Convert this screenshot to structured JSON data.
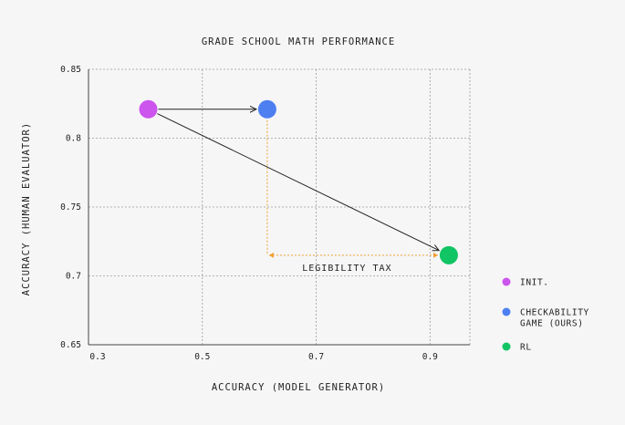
{
  "chart_data": {
    "type": "scatter",
    "title": "GRADE SCHOOL MATH PERFORMANCE",
    "xlabel": "ACCURACY (MODEL GENERATOR)",
    "ylabel": "ACCURACY (HUMAN EVALUATOR)",
    "xlim": [
      0.3,
      0.97
    ],
    "ylim": [
      0.65,
      0.85
    ],
    "xticks": [
      0.3,
      0.5,
      0.7,
      0.9
    ],
    "xtick_labels": [
      "0.3",
      "0.5",
      "0.7",
      "0.9"
    ],
    "yticks": [
      0.65,
      0.7,
      0.75,
      0.8,
      0.85
    ],
    "ytick_labels": [
      "0.65",
      "0.7",
      "0.75",
      "0.8",
      "0.85"
    ],
    "grid": true,
    "legend_position": "right",
    "series": [
      {
        "name": "INIT.",
        "legend_lines": [
          "INIT."
        ],
        "color": "#cc55ee",
        "x": 0.405,
        "y": 0.821
      },
      {
        "name": "CHECKABILITY GAME (OURS)",
        "legend_lines": [
          "CHECKABILITY",
          "GAME (OURS)"
        ],
        "color": "#4d7ff0",
        "x": 0.614,
        "y": 0.821
      },
      {
        "name": "RL",
        "legend_lines": [
          "RL"
        ],
        "color": "#11c464",
        "x": 0.933,
        "y": 0.715
      }
    ],
    "arrows": [
      {
        "from": "INIT.",
        "to": "CHECKABILITY GAME (OURS)",
        "color": "#222222"
      },
      {
        "from": "INIT.",
        "to": "RL",
        "color": "#222222"
      }
    ],
    "annotation": {
      "text": "LEGIBILITY TAX",
      "color": "#f0a030",
      "corner": {
        "x": 0.614,
        "y": 0.715
      }
    }
  }
}
